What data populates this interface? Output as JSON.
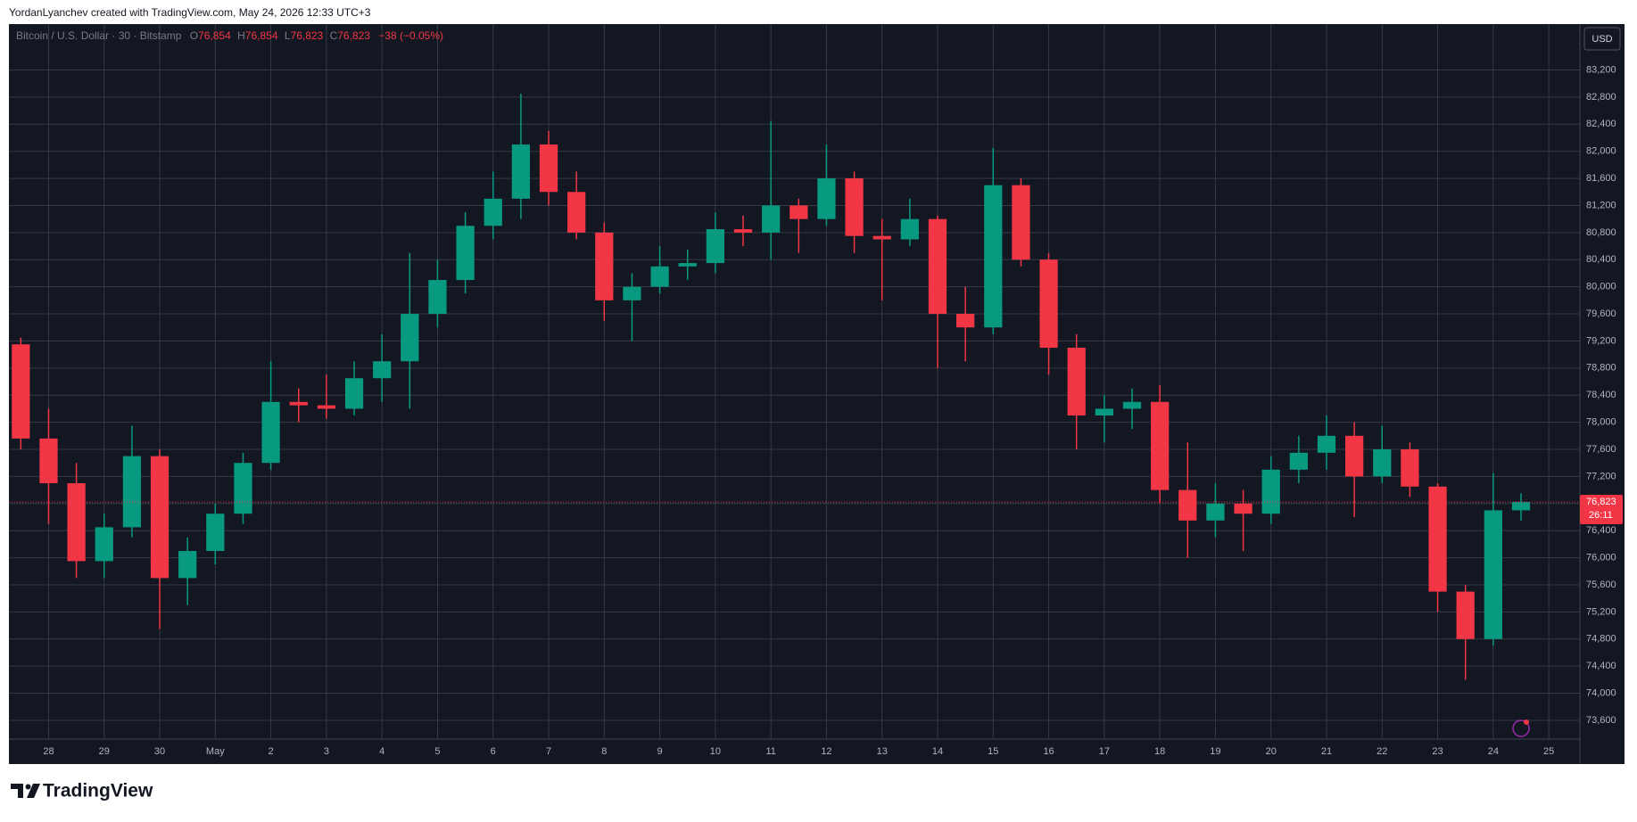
{
  "credit": "YordanLyanchev created with TradingView.com, May 24, 2026 12:33 UTC+3",
  "currency_button": "USD",
  "brand": "TradingView",
  "chart_data": {
    "type": "candlestick",
    "title": "Bitcoin / U.S. Dollar · 30 · Bitstamp",
    "ohlc_legend": {
      "open_label": "O",
      "open": "76,854",
      "high_label": "H",
      "high": "76,854",
      "low_label": "L",
      "low": "76,823",
      "close_label": "C",
      "close": "76,823",
      "change": "−38 (−0.05%)"
    },
    "last_price": {
      "value": 76823,
      "label": "76,823"
    },
    "countdown": "26:11",
    "up_color": "#089981",
    "down_color": "#f23645",
    "grid": true,
    "xlim": [
      -0.714,
      27.56
    ],
    "xticks": [
      {
        "value": 0,
        "label": "28"
      },
      {
        "value": 1,
        "label": "29"
      },
      {
        "value": 2,
        "label": "30"
      },
      {
        "value": 3,
        "label": "May"
      },
      {
        "value": 4,
        "label": "2"
      },
      {
        "value": 5,
        "label": "3"
      },
      {
        "value": 6,
        "label": "4"
      },
      {
        "value": 7,
        "label": "5"
      },
      {
        "value": 8,
        "label": "6"
      },
      {
        "value": 9,
        "label": "7"
      },
      {
        "value": 10,
        "label": "8"
      },
      {
        "value": 11,
        "label": "9"
      },
      {
        "value": 12,
        "label": "10"
      },
      {
        "value": 13,
        "label": "11"
      },
      {
        "value": 14,
        "label": "12"
      },
      {
        "value": 15,
        "label": "13"
      },
      {
        "value": 16,
        "label": "14"
      },
      {
        "value": 17,
        "label": "15"
      },
      {
        "value": 18,
        "label": "16"
      },
      {
        "value": 19,
        "label": "17"
      },
      {
        "value": 20,
        "label": "18"
      },
      {
        "value": 21,
        "label": "19"
      },
      {
        "value": 22,
        "label": "20"
      },
      {
        "value": 23,
        "label": "21"
      },
      {
        "value": 24,
        "label": "22"
      },
      {
        "value": 25,
        "label": "23"
      },
      {
        "value": 26,
        "label": "24"
      },
      {
        "value": 27,
        "label": "25"
      }
    ],
    "ylim": [
      73323,
      83878
    ],
    "yticks": [
      {
        "value": 73600,
        "label": "73,600"
      },
      {
        "value": 74000,
        "label": "74,000"
      },
      {
        "value": 74400,
        "label": "74,400"
      },
      {
        "value": 74800,
        "label": "74,800"
      },
      {
        "value": 75200,
        "label": "75,200"
      },
      {
        "value": 75600,
        "label": "75,600"
      },
      {
        "value": 76000,
        "label": "76,000"
      },
      {
        "value": 76400,
        "label": "76,400"
      },
      {
        "value": 76800,
        "label": "76,800"
      },
      {
        "value": 77200,
        "label": "77,200"
      },
      {
        "value": 77600,
        "label": "77,600"
      },
      {
        "value": 78000,
        "label": "78,000"
      },
      {
        "value": 78400,
        "label": "78,400"
      },
      {
        "value": 78800,
        "label": "78,800"
      },
      {
        "value": 79200,
        "label": "79,200"
      },
      {
        "value": 79600,
        "label": "79,600"
      },
      {
        "value": 80000,
        "label": "80,000"
      },
      {
        "value": 80400,
        "label": "80,400"
      },
      {
        "value": 80800,
        "label": "80,800"
      },
      {
        "value": 81200,
        "label": "81,200"
      },
      {
        "value": 81600,
        "label": "81,600"
      },
      {
        "value": 82000,
        "label": "82,000"
      },
      {
        "value": 82400,
        "label": "82,400"
      },
      {
        "value": 82800,
        "label": "82,800"
      },
      {
        "value": 83200,
        "label": "83,200"
      }
    ],
    "x": [
      -0.5,
      0,
      0.5,
      1,
      1.5,
      2,
      2.5,
      3,
      3.5,
      4,
      4.5,
      5,
      5.5,
      6,
      6.5,
      7,
      7.5,
      8,
      8.5,
      9,
      9.5,
      10,
      10.5,
      11,
      11.5,
      12,
      12.5,
      13,
      13.5,
      14,
      14.5,
      15,
      15.5,
      16,
      16.5,
      17,
      17.5,
      18,
      18.5,
      19,
      19.5,
      20,
      20.5,
      21,
      21.5,
      22,
      22.5,
      23,
      23.5,
      24,
      24.5,
      25,
      25.5,
      26,
      26.5
    ],
    "open": [
      79150,
      77760,
      77100,
      75950,
      76450,
      77500,
      75700,
      76100,
      76650,
      77400,
      78300,
      78250,
      78200,
      78650,
      78900,
      79600,
      80100,
      80900,
      81300,
      82100,
      81400,
      80800,
      79800,
      80000,
      80300,
      80350,
      80850,
      80800,
      81200,
      81000,
      81600,
      80750,
      80700,
      81000,
      79600,
      79400,
      81500,
      80400,
      79100,
      78100,
      78200,
      78300,
      77000,
      76550,
      76800,
      76650,
      77300,
      77550,
      77800,
      77200,
      77600,
      77050,
      75500,
      74800,
      76700
    ],
    "high": [
      79250,
      78200,
      77400,
      76650,
      77950,
      77600,
      76300,
      76800,
      77550,
      78900,
      78500,
      78700,
      78900,
      79300,
      80500,
      80400,
      81100,
      81700,
      82850,
      82300,
      81700,
      80950,
      80200,
      80600,
      80550,
      81100,
      81050,
      82450,
      81300,
      82100,
      81700,
      81000,
      81300,
      81050,
      80000,
      82050,
      81600,
      80500,
      79300,
      78400,
      78500,
      78550,
      77700,
      77100,
      77000,
      77500,
      77800,
      78100,
      78000,
      77950,
      77700,
      77100,
      75600,
      77250,
      76950
    ],
    "low": [
      77600,
      76500,
      75700,
      75700,
      76300,
      74950,
      75300,
      75900,
      76500,
      77300,
      78000,
      78050,
      78100,
      78300,
      78200,
      79400,
      79900,
      80700,
      81000,
      81200,
      80700,
      79500,
      79200,
      79900,
      80100,
      80200,
      80600,
      80400,
      80500,
      80900,
      80500,
      79800,
      80600,
      78800,
      78900,
      79300,
      80300,
      78700,
      77600,
      77700,
      77900,
      76800,
      76000,
      76300,
      76100,
      76500,
      77100,
      77300,
      76600,
      77100,
      76900,
      75200,
      74200,
      74700,
      76550
    ],
    "close": [
      77760,
      77100,
      75950,
      76450,
      77500,
      75700,
      76100,
      76650,
      77400,
      78300,
      78250,
      78200,
      78650,
      78900,
      79600,
      80100,
      80900,
      81300,
      82100,
      81400,
      80800,
      79800,
      80000,
      80300,
      80350,
      80850,
      80800,
      81200,
      81000,
      81600,
      80750,
      80700,
      81000,
      79600,
      79400,
      81500,
      80400,
      79100,
      78100,
      78200,
      78300,
      77000,
      76550,
      76800,
      76650,
      77300,
      77550,
      77800,
      77200,
      77600,
      77050,
      75500,
      74800,
      76700,
      76823
    ]
  }
}
